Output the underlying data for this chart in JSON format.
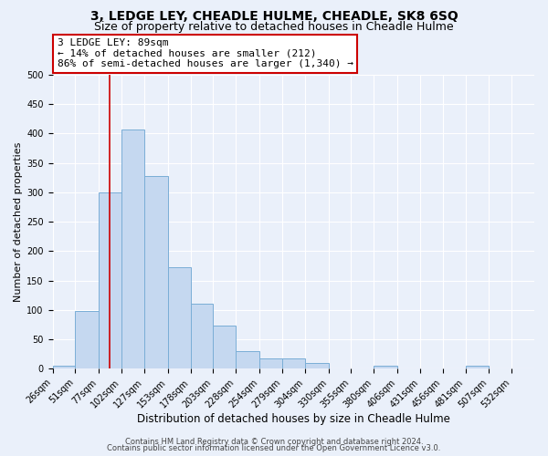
{
  "title": "3, LEDGE LEY, CHEADLE HULME, CHEADLE, SK8 6SQ",
  "subtitle": "Size of property relative to detached houses in Cheadle Hulme",
  "xlabel": "Distribution of detached houses by size in Cheadle Hulme",
  "ylabel": "Number of detached properties",
  "bin_labels": [
    "26sqm",
    "51sqm",
    "77sqm",
    "102sqm",
    "127sqm",
    "153sqm",
    "178sqm",
    "203sqm",
    "228sqm",
    "254sqm",
    "279sqm",
    "304sqm",
    "330sqm",
    "355sqm",
    "380sqm",
    "406sqm",
    "431sqm",
    "456sqm",
    "481sqm",
    "507sqm",
    "532sqm"
  ],
  "bar_values": [
    5,
    98,
    300,
    407,
    327,
    172,
    110,
    73,
    30,
    18,
    17,
    10,
    0,
    0,
    5,
    0,
    0,
    0,
    5,
    0,
    0
  ],
  "bar_color": "#c5d8f0",
  "bar_edge_color": "#7aaed6",
  "red_line_x": 89,
  "bin_edges_sqm": [
    26,
    51,
    77,
    102,
    127,
    153,
    178,
    203,
    228,
    254,
    279,
    304,
    330,
    355,
    380,
    406,
    431,
    456,
    481,
    507,
    532,
    557
  ],
  "annotation_line1": "3 LEDGE LEY: 89sqm",
  "annotation_line2": "← 14% of detached houses are smaller (212)",
  "annotation_line3": "86% of semi-detached houses are larger (1,340) →",
  "annotation_box_color": "#ffffff",
  "annotation_box_edge_color": "#cc0000",
  "ylim": [
    0,
    500
  ],
  "yticks": [
    0,
    50,
    100,
    150,
    200,
    250,
    300,
    350,
    400,
    450,
    500
  ],
  "footer1": "Contains HM Land Registry data © Crown copyright and database right 2024.",
  "footer2": "Contains public sector information licensed under the Open Government Licence v3.0.",
  "background_color": "#eaf0fa",
  "plot_background_color": "#eaf0fa",
  "grid_color": "#ffffff",
  "title_fontsize": 10,
  "subtitle_fontsize": 9,
  "xlabel_fontsize": 8.5,
  "ylabel_fontsize": 8,
  "tick_fontsize": 7,
  "annotation_fontsize": 8,
  "footer_fontsize": 6
}
